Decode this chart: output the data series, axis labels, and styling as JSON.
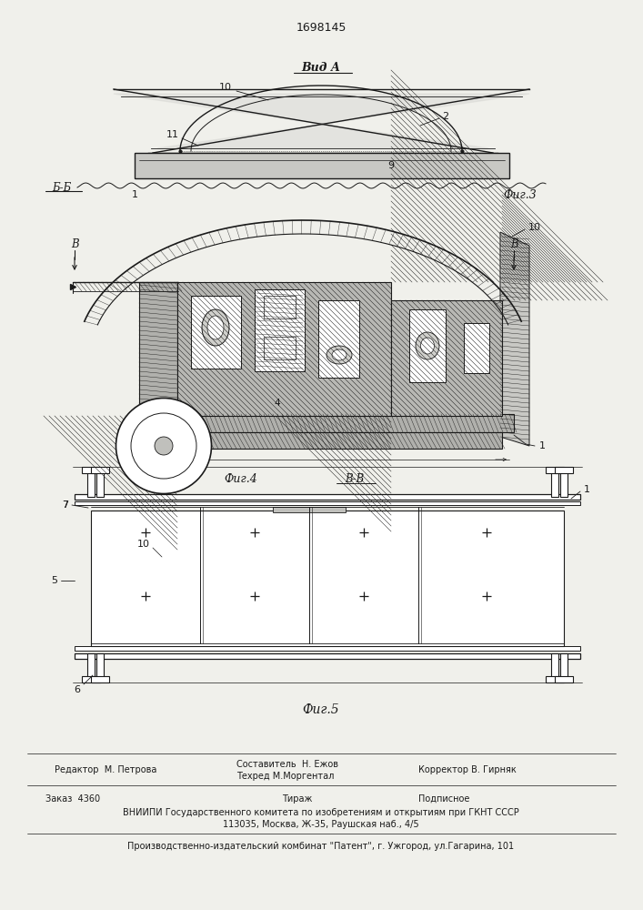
{
  "patent_number": "1698145",
  "bg": "#f0f0eb",
  "lc": "#1a1a1a",
  "fig_width": 7.07,
  "fig_height": 10.0,
  "footer": {
    "col1_row1": "Редактор  М. Петрова",
    "col2_row1a": "Составитель  Н. Ежов",
    "col2_row1b": "Техред М.Моргентал",
    "col3_row1": "Корректор В. Гирняк",
    "col1_row2": "Заказ  4360",
    "col2_row2": "Тираж",
    "col3_row2": "Подписное",
    "row3": "ВНИИПИ Государственного комитета по изобретениям и открытиям при ГКНТ СССР",
    "row4": "113035, Москва, Ж-35, Раушская наб., 4/5",
    "row5": "Производственно-издательский комбинат \"Патент\", г. Ужгород, ул.Гагарина, 101"
  }
}
